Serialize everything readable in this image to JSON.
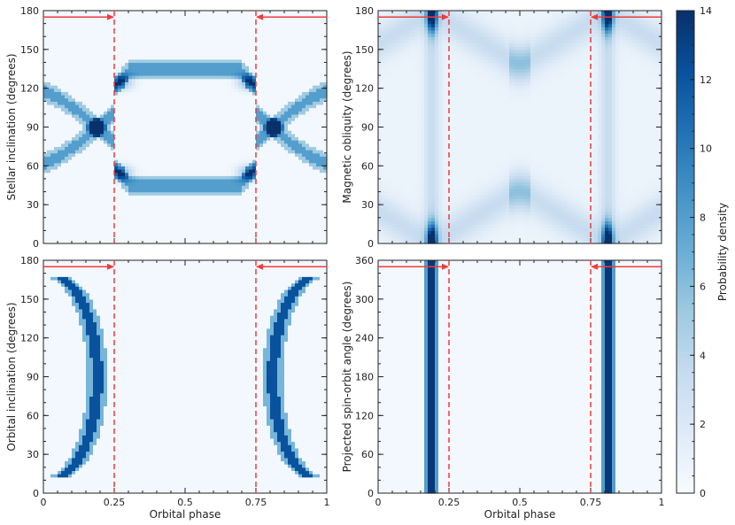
{
  "chart_data": [
    {
      "type": "heatmap",
      "panel": "top-left",
      "xlabel": "",
      "ylabel": "Stellar inclination (degrees)",
      "xlim": [
        0,
        1
      ],
      "ylim": [
        0,
        180
      ],
      "xticks": [
        0,
        0.25,
        0.5,
        0.75,
        1
      ],
      "yticks": [
        0,
        30,
        60,
        90,
        120,
        150,
        180
      ],
      "ytick_labels": [
        "0",
        "30",
        "60",
        "90",
        "120",
        "150",
        "180"
      ],
      "show_xtick_labels": false,
      "dashed_lines_x": [
        0.25,
        0.75
      ],
      "arrows": [
        {
          "from": 0,
          "to": 0.25,
          "y": 175
        },
        {
          "from": 1,
          "to": 0.75,
          "y": 175
        }
      ],
      "pattern": "Two crossing arcs per side: band oscillating between ~45 and ~135 deg with crossings at phase ~0.19 and ~0.81 (i = 90)"
    },
    {
      "type": "heatmap",
      "panel": "top-right",
      "xlabel": "",
      "ylabel": "Magnetic obliquity (degrees)",
      "xlim": [
        0,
        1
      ],
      "ylim": [
        0,
        180
      ],
      "xticks": [
        0,
        0.25,
        0.5,
        0.75,
        1
      ],
      "yticks": [
        0,
        30,
        60,
        90,
        120,
        150,
        180
      ],
      "ytick_labels": [
        "0",
        "30",
        "60",
        "90",
        "120",
        "150",
        "180"
      ],
      "show_xtick_labels": false,
      "dashed_lines_x": [
        0.25,
        0.75
      ],
      "arrows": [
        {
          "from": 0,
          "to": 0.25,
          "y": 175
        },
        {
          "from": 1,
          "to": 0.75,
          "y": 175
        }
      ],
      "pattern": "Diffuse arcs converging to 0 and 180 deg near phase ~0.19 and ~0.81"
    },
    {
      "type": "heatmap",
      "panel": "bottom-left",
      "xlabel": "Orbital phase",
      "ylabel": "Orbital inclination (degrees)",
      "xlim": [
        0,
        1
      ],
      "ylim": [
        0,
        180
      ],
      "xticks": [
        0,
        0.25,
        0.5,
        0.75,
        1
      ],
      "xtick_labels": [
        "0",
        "0.25",
        "0.5",
        "0.75",
        "1"
      ],
      "yticks": [
        0,
        30,
        60,
        90,
        120,
        150,
        180
      ],
      "ytick_labels": [
        "0",
        "30",
        "60",
        "90",
        "120",
        "150",
        "180"
      ],
      "dashed_lines_x": [
        0.25,
        0.75
      ],
      "arrows": [
        {
          "from": 0,
          "to": 0.25,
          "y": 175
        },
        {
          "from": 1,
          "to": 0.75,
          "y": 175
        }
      ],
      "pattern": "Curved bands spanning ~12 to ~168 deg, apex at phase ~0.19 and ~0.81 for i = 90"
    },
    {
      "type": "heatmap",
      "panel": "bottom-right",
      "xlabel": "Orbital phase",
      "ylabel": "Projected spin-orbit angle (degrees)",
      "xlim": [
        0,
        1
      ],
      "ylim": [
        0,
        360
      ],
      "xticks": [
        0,
        0.25,
        0.5,
        0.75,
        1
      ],
      "xtick_labels": [
        "0",
        "0.25",
        "0.5",
        "0.75",
        "1"
      ],
      "yticks": [
        0,
        60,
        120,
        180,
        240,
        300,
        360
      ],
      "ytick_labels": [
        "0",
        "60",
        "120",
        "180",
        "240",
        "300",
        "360"
      ],
      "dashed_lines_x": [
        0.25,
        0.75
      ],
      "arrows": [
        {
          "from": 0,
          "to": 0.25,
          "y": 350
        },
        {
          "from": 1,
          "to": 0.75,
          "y": 350
        }
      ],
      "pattern": "Narrow vertical stripes at phase ~0.19 and ~0.81 spanning full range"
    }
  ],
  "colorbar": {
    "label": "Probability density",
    "min": 0,
    "max": 14,
    "ticks": [
      0,
      2,
      4,
      6,
      8,
      10,
      12,
      14
    ],
    "tick_labels": [
      "0",
      "2",
      "4",
      "6",
      "8",
      "10",
      "12",
      "14"
    ],
    "colormap": "Blues",
    "low_color": "#f7fbff",
    "high_color": "#08306b"
  },
  "colors": {
    "marker_line": "#f03b3b",
    "axis": "#222222"
  }
}
